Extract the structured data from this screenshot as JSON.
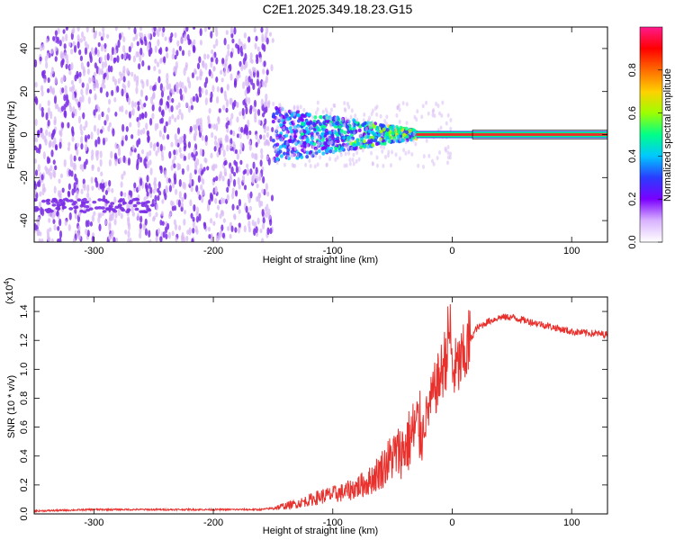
{
  "title": "C2E1.2025.349.18.23.G15",
  "colors": {
    "spectrogram_noise": "#7b2ee6",
    "spectrogram_light": "#d7b8f5",
    "signal_line": "#e8302c",
    "snr_line": "#e8302c",
    "axis": "#000000"
  },
  "chart_data": [
    {
      "type": "heatmap",
      "name": "spectrogram",
      "title": "C2E1.2025.349.18.23.G15",
      "xlabel": "Height of straight line (km)",
      "ylabel": "Frequency (Hz)",
      "xlim": [
        -350,
        130
      ],
      "ylim": [
        -50,
        50
      ],
      "xticks": [
        -300,
        -200,
        -100,
        0,
        100
      ],
      "yticks": [
        -40,
        -20,
        0,
        20,
        40
      ],
      "colorbar": {
        "label": "Normalized spectral amplitude",
        "range": [
          0.0,
          1.0
        ],
        "ticks": [
          0.0,
          0.2,
          0.4,
          0.6,
          0.8
        ],
        "tick_labels": [
          "0.0",
          "0.2",
          "0.4",
          "0.6",
          "0.8"
        ],
        "colors": [
          "#ffffff",
          "#d9b3ff",
          "#7a00ff",
          "#2a3cff",
          "#00c8ff",
          "#00ff88",
          "#9dff00",
          "#ffd000",
          "#ff6a00",
          "#ff0000",
          "#ff1a8c"
        ]
      },
      "regions": [
        {
          "kind": "broadband_noise",
          "x_range": [
            -350,
            -150
          ],
          "freq_range": [
            -50,
            50
          ],
          "amplitude": 0.2
        },
        {
          "kind": "low_frequency_band",
          "x_range": [
            -350,
            -250
          ],
          "freq_range": [
            -36,
            -30
          ],
          "amplitude": 0.3
        },
        {
          "kind": "converging_signal",
          "x_range": [
            -150,
            -30
          ],
          "freq_range": [
            -10,
            10
          ],
          "amplitude": 0.4
        },
        {
          "kind": "stable_signal",
          "x_range": [
            -30,
            130
          ],
          "freq": 0,
          "amplitude": 0.95
        }
      ]
    },
    {
      "type": "line",
      "name": "snr",
      "xlabel": "Height of straight line (km)",
      "ylabel": "SNR (10 * v/v)",
      "y_scale_label": "(x10^4)",
      "y_scale_base": "x10",
      "y_scale_exp": "4",
      "xlim": [
        -350,
        130
      ],
      "ylim": [
        0,
        1.5
      ],
      "xticks": [
        -300,
        -200,
        -100,
        0,
        100
      ],
      "yticks": [
        0.0,
        0.2,
        0.4,
        0.6,
        0.8,
        1.0,
        1.2,
        1.4
      ],
      "ytick_labels": [
        "0.0",
        "0.2",
        "0.4",
        "0.6",
        "0.8",
        "1.0",
        "1.2",
        "1.4"
      ],
      "series": [
        {
          "name": "SNR",
          "x": [
            -350,
            -300,
            -250,
            -200,
            -160,
            -150,
            -130,
            -110,
            -90,
            -70,
            -60,
            -50,
            -40,
            -30,
            -25,
            -20,
            -15,
            -10,
            -5,
            -2,
            0,
            5,
            10,
            15,
            20,
            30,
            40,
            50,
            60,
            80,
            100,
            130
          ],
          "y": [
            0.02,
            0.03,
            0.03,
            0.03,
            0.03,
            0.04,
            0.07,
            0.12,
            0.15,
            0.22,
            0.3,
            0.4,
            0.45,
            0.6,
            0.58,
            0.72,
            0.85,
            0.95,
            1.1,
            1.3,
            0.98,
            1.02,
            1.08,
            1.2,
            1.28,
            1.33,
            1.36,
            1.36,
            1.34,
            1.3,
            1.26,
            1.24
          ]
        }
      ]
    }
  ]
}
